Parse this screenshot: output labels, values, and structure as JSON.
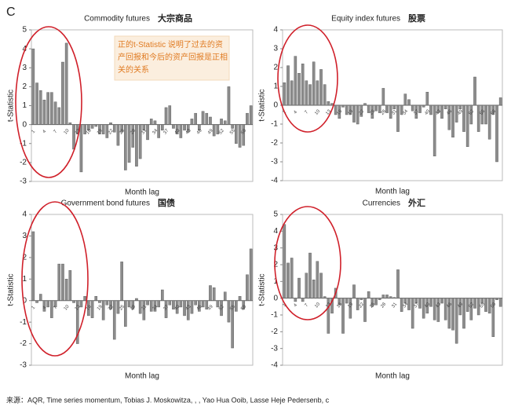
{
  "panel_label": "C",
  "annotation": "正的t-Statistic 说明了过去的资产回报和今后的资产回报是正相关的关系",
  "source": "来源：AQR, Time series momentum, Tobias J. Moskowitza, , , Yao Hua Ooib, Lasse Heje Pedersenb, c",
  "chart_data": [
    {
      "type": "bar",
      "title": "Commodity futures",
      "title_cn": "大宗商品",
      "xlabel": "Month lag",
      "ylabel": "t-Statistic",
      "color": "#8c8c8c",
      "categories": [
        1,
        null,
        null,
        4,
        null,
        null,
        7,
        null,
        null,
        10,
        null,
        null,
        13,
        null,
        null,
        16,
        null,
        null,
        19,
        null,
        null,
        22,
        null,
        null,
        25,
        null,
        null,
        28,
        null,
        null,
        31,
        null,
        null,
        34,
        null,
        null,
        37,
        null,
        null,
        40,
        null,
        null,
        43,
        null,
        null,
        46,
        null,
        null,
        49,
        null,
        null,
        52,
        null,
        null,
        55,
        null,
        null,
        58,
        null,
        null
      ],
      "values": [
        4.0,
        2.2,
        1.8,
        1.3,
        1.7,
        1.7,
        1.2,
        0.9,
        3.3,
        4.3,
        0.1,
        -1.3,
        -0.5,
        -2.5,
        -0.5,
        -0.3,
        -0.2,
        -0.1,
        -0.5,
        -0.5,
        -0.7,
        0.1,
        -0.4,
        -1.1,
        -0.4,
        -2.4,
        -2.0,
        -1.2,
        -2.2,
        -1.8,
        -0.3,
        -0.8,
        0.3,
        0.2,
        -0.7,
        -0.3,
        0.9,
        1.0,
        -0.2,
        -0.5,
        -0.7,
        -0.3,
        -0.4,
        0.3,
        0.6,
        -0.3,
        0.7,
        0.6,
        0.4,
        -0.6,
        -0.5,
        0.3,
        0.2,
        2.0,
        -0.2,
        -1.0,
        -1.2,
        -1.1,
        0.6,
        1.0
      ],
      "ylim": [
        -3,
        5
      ],
      "yticks": [
        -3,
        -2,
        -1,
        0,
        1,
        2,
        3,
        4,
        5
      ]
    },
    {
      "type": "bar",
      "title": "Equity index futures",
      "title_cn": "股票",
      "xlabel": "Month lag",
      "ylabel": "t-Statistic",
      "color": "#8c8c8c",
      "categories": [
        1,
        null,
        null,
        4,
        null,
        null,
        7,
        null,
        null,
        10,
        null,
        null,
        13,
        null,
        null,
        16,
        null,
        null,
        19,
        null,
        null,
        22,
        null,
        null,
        25,
        null,
        null,
        28,
        null,
        null,
        31,
        null,
        null,
        34,
        null,
        null,
        37,
        null,
        null,
        40,
        null,
        null,
        43,
        null,
        null,
        46,
        null,
        null,
        49,
        null,
        null,
        52,
        null,
        null,
        55,
        null,
        null,
        58,
        null,
        null
      ],
      "values": [
        1.2,
        2.1,
        1.3,
        2.6,
        1.7,
        2.2,
        1.3,
        1.1,
        2.3,
        1.3,
        1.9,
        1.1,
        0.2,
        0.1,
        -0.5,
        -0.7,
        -0.1,
        -0.5,
        -0.5,
        -0.9,
        -1.0,
        -0.6,
        0.1,
        -0.4,
        -0.7,
        -0.3,
        -0.4,
        0.9,
        -0.4,
        -0.7,
        -0.2,
        -1.4,
        -0.5,
        0.6,
        0.3,
        -0.3,
        -0.7,
        -0.4,
        -0.1,
        0.7,
        -0.5,
        -2.7,
        -0.4,
        -0.7,
        -0.2,
        -1.3,
        -1.7,
        -0.9,
        -0.2,
        -1.4,
        -2.2,
        -1.0,
        1.5,
        -1.4,
        -1.0,
        -1.0,
        -1.8,
        -0.5,
        -3.0,
        0.4
      ],
      "ylim": [
        -4,
        4
      ],
      "yticks": [
        -4,
        -3,
        -2,
        -1,
        0,
        1,
        2,
        3,
        4
      ]
    },
    {
      "type": "bar",
      "title": "Government bond futures",
      "title_cn": "国债",
      "xlabel": "Month lag",
      "ylabel": "t-Statistic",
      "color": "#8c8c8c",
      "categories": [
        1,
        null,
        null,
        4,
        null,
        null,
        7,
        null,
        null,
        10,
        null,
        null,
        13,
        null,
        null,
        16,
        null,
        null,
        19,
        null,
        null,
        22,
        null,
        null,
        25,
        null,
        null,
        28,
        null,
        null,
        31,
        null,
        null,
        34,
        null,
        null,
        37,
        null,
        null,
        40,
        null,
        null,
        43,
        null,
        null,
        46,
        null,
        null,
        49,
        null,
        null,
        52,
        null,
        null,
        55,
        null,
        null,
        58,
        null,
        null
      ],
      "values": [
        3.2,
        -0.1,
        0.3,
        -0.5,
        -0.3,
        -0.8,
        -0.3,
        1.7,
        1.7,
        1.0,
        1.4,
        -0.1,
        -2.0,
        -0.3,
        0.2,
        -0.7,
        -0.8,
        0.2,
        -0.1,
        -0.9,
        -0.2,
        -0.4,
        -1.8,
        -0.6,
        1.8,
        -1.2,
        -0.3,
        -0.4,
        0.1,
        -0.6,
        -0.9,
        -0.2,
        -0.5,
        -0.5,
        -0.3,
        0.5,
        -0.8,
        -0.2,
        -0.4,
        -0.6,
        -0.3,
        -0.7,
        -0.9,
        -0.6,
        -0.2,
        -0.5,
        -0.3,
        -0.4,
        0.7,
        0.6,
        -0.3,
        -0.7,
        0.4,
        -1.0,
        -2.2,
        -0.5,
        0.2,
        -0.4,
        1.2,
        2.4
      ],
      "ylim": [
        -3,
        4
      ],
      "yticks": [
        -3,
        -2,
        -1,
        0,
        1,
        2,
        3,
        4
      ]
    },
    {
      "type": "bar",
      "title": "Currencies",
      "title_cn": "外汇",
      "xlabel": "Month lag",
      "ylabel": "t-Statistic",
      "color": "#8c8c8c",
      "categories": [
        1,
        null,
        null,
        4,
        null,
        null,
        7,
        null,
        null,
        10,
        null,
        null,
        13,
        null,
        null,
        16,
        null,
        null,
        19,
        null,
        null,
        22,
        null,
        null,
        25,
        null,
        null,
        28,
        null,
        null,
        31,
        null,
        null,
        34,
        null,
        null,
        37,
        null,
        null,
        40,
        null,
        null,
        43,
        null,
        null,
        46,
        null,
        null,
        49,
        null,
        null,
        52,
        null,
        null,
        55,
        null,
        null,
        58,
        null,
        null
      ],
      "values": [
        4.4,
        2.1,
        2.4,
        -0.2,
        1.2,
        -0.2,
        1.5,
        2.7,
        1.1,
        2.2,
        1.5,
        0.1,
        -2.1,
        -0.9,
        0.6,
        -0.4,
        -2.1,
        -0.3,
        -1.2,
        0.8,
        -0.7,
        -0.1,
        -1.4,
        0.4,
        -0.5,
        -0.4,
        -0.1,
        0.2,
        0.2,
        0.1,
        0.05,
        1.7,
        -0.8,
        -0.3,
        -0.7,
        -1.8,
        -0.3,
        -0.6,
        -1.2,
        -0.9,
        -0.5,
        -1.3,
        -1.4,
        -0.3,
        -1.3,
        -1.8,
        -1.9,
        -2.7,
        -1.0,
        -1.8,
        -0.8,
        -1.3,
        -0.6,
        -1.0,
        -0.3,
        -0.8,
        -0.9,
        -2.3,
        -0.1,
        -0.5
      ],
      "ylim": [
        -4,
        5
      ],
      "yticks": [
        -4,
        -3,
        -2,
        -1,
        0,
        1,
        2,
        3,
        4,
        5
      ]
    }
  ]
}
